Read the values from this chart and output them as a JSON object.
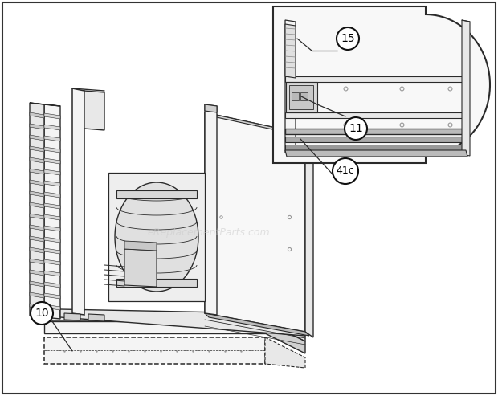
{
  "bg_color": "#ffffff",
  "line_color": "#2a2a2a",
  "dark_color": "#111111",
  "mid_gray": "#999999",
  "light_gray": "#dddddd",
  "fill_light": "#f4f4f4",
  "fill_mid": "#e8e8e8",
  "fill_dark": "#d0d0d0",
  "watermark_text": "eReplacementParts.com",
  "watermark_color": "#cccccc",
  "watermark_alpha": 0.55,
  "figsize": [
    6.2,
    4.93
  ],
  "dpi": 100
}
